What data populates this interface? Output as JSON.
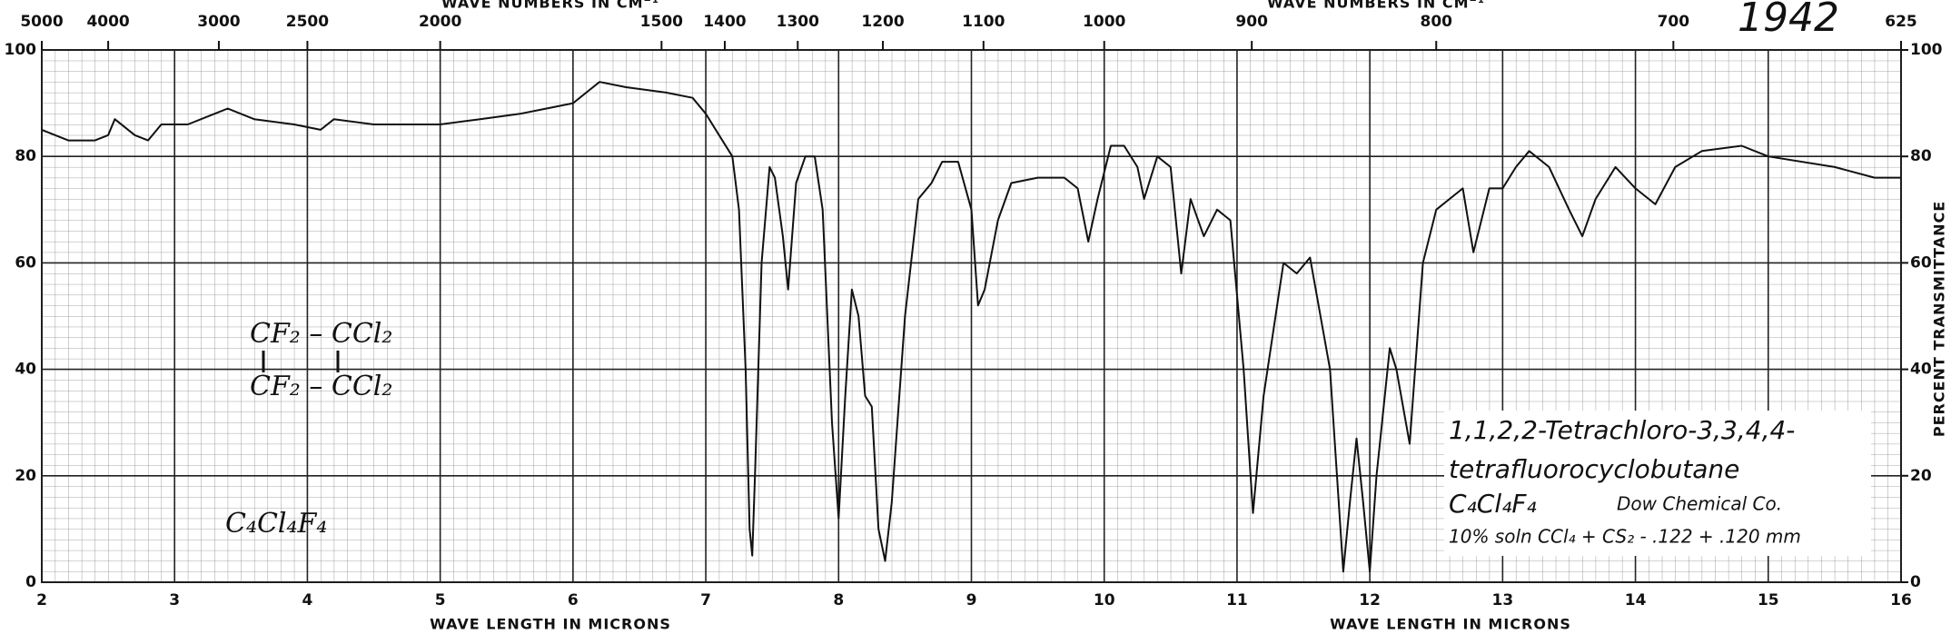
{
  "chart_data": {
    "type": "line",
    "x_title": "WAVE LENGTH IN MICRONS",
    "x2_title": "WAVE NUMBERS IN CM⁻¹",
    "y2_title": "PERCENT TRANSMITTANCE",
    "xlim": [
      2,
      16
    ],
    "xticks": [
      2,
      3,
      4,
      5,
      6,
      7,
      8,
      9,
      10,
      11,
      12,
      13,
      14,
      15,
      16
    ],
    "x2_scale": "reciprocal",
    "x2ticks": [
      5000,
      4000,
      3000,
      2500,
      2000,
      1500,
      1400,
      1300,
      1200,
      1100,
      1000,
      900,
      800,
      700,
      625
    ],
    "ylim": [
      0,
      100
    ],
    "yticks": [
      0,
      20,
      40,
      60,
      80,
      100
    ],
    "y2lim": [
      0,
      100
    ],
    "y2ticks": [
      0,
      20,
      40,
      60,
      80,
      100
    ],
    "grid": true,
    "color": "#111111",
    "x": [
      2.0,
      2.2,
      2.4,
      2.5,
      2.55,
      2.7,
      2.8,
      2.9,
      3.1,
      3.3,
      3.4,
      3.6,
      3.9,
      4.1,
      4.2,
      4.5,
      4.8,
      5.0,
      5.3,
      5.6,
      5.8,
      6.0,
      6.1,
      6.2,
      6.4,
      6.7,
      6.9,
      7.0,
      7.1,
      7.2,
      7.25,
      7.3,
      7.33,
      7.35,
      7.37,
      7.42,
      7.48,
      7.52,
      7.58,
      7.62,
      7.68,
      7.75,
      7.82,
      7.88,
      7.95,
      8.0,
      8.05,
      8.1,
      8.15,
      8.2,
      8.25,
      8.3,
      8.35,
      8.4,
      8.5,
      8.6,
      8.7,
      8.78,
      8.9,
      9.0,
      9.05,
      9.1,
      9.2,
      9.3,
      9.5,
      9.7,
      9.8,
      9.88,
      9.95,
      10.05,
      10.15,
      10.25,
      10.3,
      10.4,
      10.5,
      10.58,
      10.65,
      10.75,
      10.85,
      10.95,
      11.05,
      11.12,
      11.2,
      11.35,
      11.45,
      11.55,
      11.7,
      11.8,
      11.85,
      11.9,
      11.95,
      12.0,
      12.05,
      12.15,
      12.2,
      12.3,
      12.4,
      12.5,
      12.7,
      12.78,
      12.9,
      13.0,
      13.1,
      13.2,
      13.35,
      13.5,
      13.6,
      13.7,
      13.85,
      14.0,
      14.15,
      14.3,
      14.5,
      14.8,
      15.0,
      15.5,
      15.8,
      16.0
    ],
    "values": [
      85,
      83,
      83,
      84,
      87,
      84,
      83,
      86,
      86,
      88,
      89,
      87,
      86,
      85,
      87,
      86,
      86,
      86,
      87,
      88,
      89,
      90,
      92,
      94,
      93,
      92,
      91,
      88,
      84,
      80,
      70,
      40,
      10,
      5,
      20,
      60,
      78,
      76,
      65,
      55,
      75,
      80,
      80,
      70,
      30,
      12,
      35,
      55,
      50,
      35,
      33,
      10,
      4,
      15,
      50,
      72,
      75,
      79,
      79,
      70,
      52,
      55,
      68,
      75,
      76,
      76,
      74,
      64,
      72,
      82,
      82,
      78,
      72,
      80,
      78,
      58,
      72,
      65,
      70,
      68,
      40,
      13,
      35,
      60,
      58,
      61,
      40,
      2,
      15,
      27,
      15,
      2,
      20,
      44,
      40,
      26,
      60,
      70,
      74,
      62,
      74,
      74,
      78,
      81,
      78,
      70,
      65,
      72,
      78,
      74,
      71,
      78,
      81,
      82,
      80,
      78,
      76,
      76
    ],
    "annotations": {
      "year": "1942",
      "structure_top": "CF₂ – CCl₂",
      "structure_bottom": "CF₂ – CCl₂",
      "formula_left": "C₄Cl₄F₄",
      "name_line1": "1,1,2,2-Tetrachloro-3,3,4,4-",
      "name_line2": "tetrafluorocyclobutane",
      "formula": "C₄Cl₄F₄",
      "source": "Dow Chemical Co.",
      "sample": "10% soln CCl₄ + CS₂ - .122 + .120 mm"
    }
  }
}
